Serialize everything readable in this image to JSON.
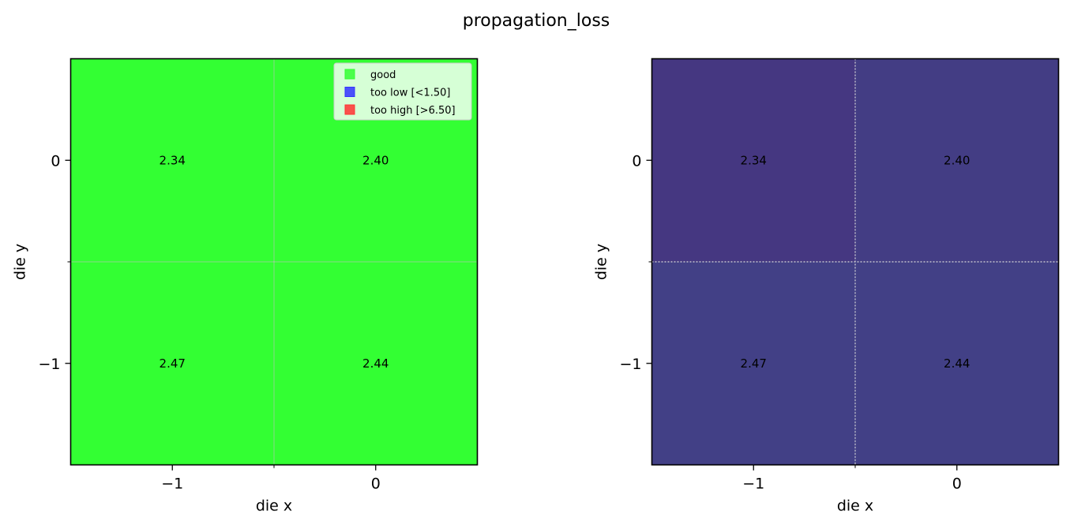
{
  "figure": {
    "title": "propagation_loss"
  },
  "chart_data": [
    {
      "type": "heatmap",
      "panel": "pass-fail",
      "x_ticks": [
        -1,
        0
      ],
      "y_ticks": [
        0,
        -1
      ],
      "x_tick_labels": [
        "−1",
        "0"
      ],
      "y_tick_labels": [
        "0",
        "−1"
      ],
      "xlabel": "die x",
      "ylabel": "die y",
      "xlim": [
        -1.5,
        0.5
      ],
      "ylim": [
        -1.5,
        0.5
      ],
      "cells": [
        {
          "x": -1,
          "y": 0,
          "value": 2.34,
          "label": "2.34",
          "color": "#33ff33"
        },
        {
          "x": 0,
          "y": 0,
          "value": 2.4,
          "label": "2.40",
          "color": "#33ff33"
        },
        {
          "x": -1,
          "y": -1,
          "value": 2.47,
          "label": "2.47",
          "color": "#33ff33"
        },
        {
          "x": 0,
          "y": -1,
          "value": 2.44,
          "label": "2.44",
          "color": "#33ff33"
        }
      ],
      "grid": true,
      "grid_color": "#bfbfbf",
      "legend": {
        "placement": "top-right",
        "entries": [
          {
            "label": "good",
            "color": "#33ff33"
          },
          {
            "label": "too low [<1.50]",
            "color": "#3333ff"
          },
          {
            "label": "too high [>6.50]",
            "color": "#ff3333"
          }
        ]
      }
    },
    {
      "type": "heatmap",
      "panel": "value-colormap",
      "x_ticks": [
        -1,
        0
      ],
      "y_ticks": [
        0,
        -1
      ],
      "x_tick_labels": [
        "−1",
        "0"
      ],
      "y_tick_labels": [
        "0",
        "−1"
      ],
      "xlabel": "die x",
      "ylabel": "die y",
      "xlim": [
        -1.5,
        0.5
      ],
      "ylim": [
        -1.5,
        0.5
      ],
      "cells": [
        {
          "x": -1,
          "y": 0,
          "value": 2.34,
          "label": "2.34",
          "color": "#453781"
        },
        {
          "x": 0,
          "y": 0,
          "value": 2.4,
          "label": "2.40",
          "color": "#433d84"
        },
        {
          "x": -1,
          "y": -1,
          "value": 2.47,
          "label": "2.47",
          "color": "#424086"
        },
        {
          "x": 0,
          "y": -1,
          "value": 2.44,
          "label": "2.44",
          "color": "#424086"
        }
      ],
      "grid": true,
      "grid_color": "#d9d9d9"
    }
  ]
}
